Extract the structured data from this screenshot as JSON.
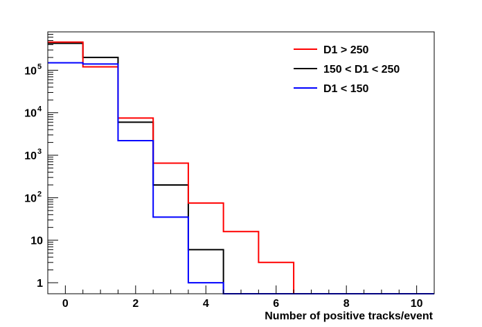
{
  "chart_data": {
    "type": "histogram",
    "title": "",
    "xlabel": "Number of positive tracks/event",
    "ylabel": "",
    "x_scale": "linear",
    "y_scale": "log",
    "xlim": [
      -0.5,
      10.5
    ],
    "ylim": [
      0.55,
      800000
    ],
    "grid": false,
    "legend_position": "top-right",
    "bin_edges": [
      -0.5,
      0.5,
      1.5,
      2.5,
      3.5,
      4.5,
      5.5,
      6.5,
      7.5,
      8.5,
      9.5,
      10.5
    ],
    "x_ticks": [
      {
        "value": 0,
        "label": "0"
      },
      {
        "value": 2,
        "label": "2"
      },
      {
        "value": 4,
        "label": "4"
      },
      {
        "value": 6,
        "label": "6"
      },
      {
        "value": 8,
        "label": "8"
      },
      {
        "value": 10,
        "label": "10"
      }
    ],
    "y_ticks": [
      {
        "value": 1,
        "base": "1",
        "exp": ""
      },
      {
        "value": 10,
        "base": "10",
        "exp": ""
      },
      {
        "value": 100,
        "base": "10",
        "exp": "2"
      },
      {
        "value": 1000,
        "base": "10",
        "exp": "3"
      },
      {
        "value": 10000,
        "base": "10",
        "exp": "4"
      },
      {
        "value": 100000,
        "base": "10",
        "exp": "5"
      }
    ],
    "series": [
      {
        "name": "D1 > 250",
        "color": "#ff0000",
        "values": [
          460000,
          120000,
          7500,
          650,
          75,
          16,
          3,
          0,
          0,
          0,
          0
        ]
      },
      {
        "name": "150 < D1 < 250",
        "color": "#000000",
        "values": [
          430000,
          200000,
          6000,
          200,
          6,
          0,
          0,
          0,
          0,
          0,
          0
        ]
      },
      {
        "name": "D1 < 150",
        "color": "#0000ff",
        "values": [
          150000,
          140000,
          2200,
          35,
          1,
          0,
          0,
          0,
          0,
          0,
          0
        ]
      }
    ]
  }
}
